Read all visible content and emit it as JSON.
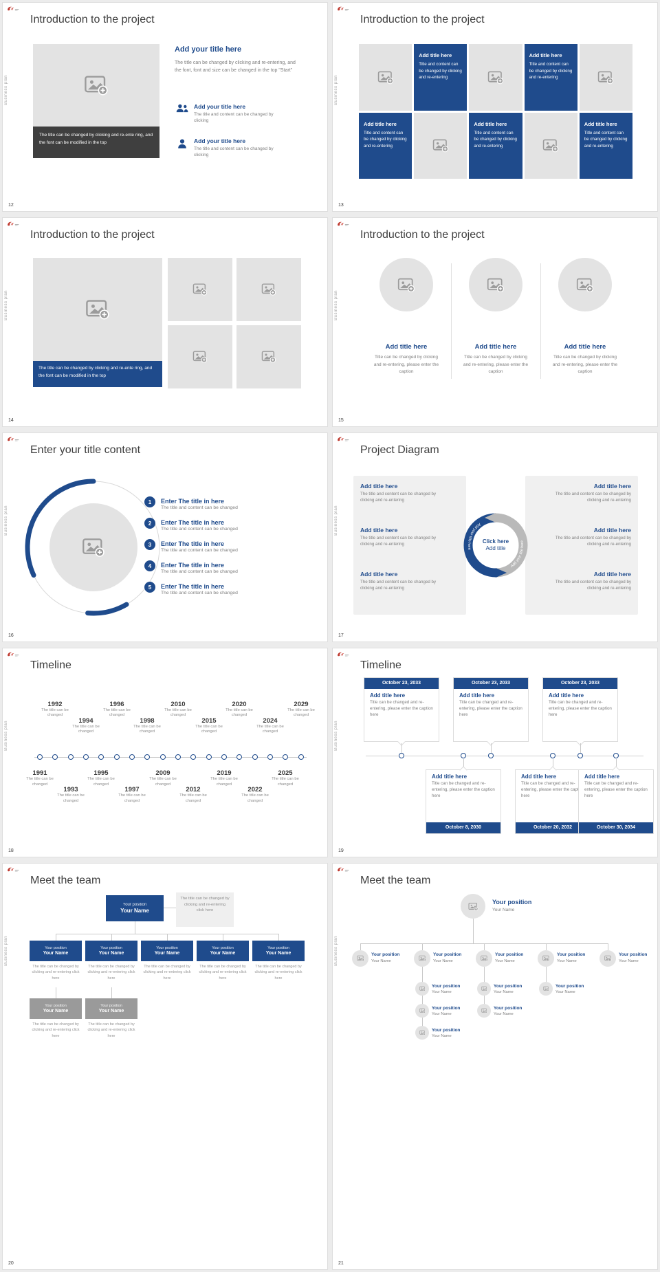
{
  "theme": {
    "accent_navy": "#1f4b8c",
    "dark_bar": "#3f3f3f",
    "placeholder_gray": "#e3e3e3",
    "page_bg": "#ececec"
  },
  "common": {
    "sidebar_label": "Business plan"
  },
  "icons": {
    "image-placeholder-icon": "picture frame with mountain, sun and plus badge",
    "people-icon": "two person silhouettes",
    "person-icon": "single person silhouette",
    "brand-logo-icon": "small red brand mark"
  },
  "s12": {
    "number": "12",
    "title": "Introduction to the project",
    "photo_caption": "The title can be changed by clicking and re-ente ring, and the font can be modified in the top",
    "lead_title": "Add your title here",
    "lead_body": "The title can be changed by clicking and re-entering, and the font, font and size can be changed in the top \"Start\"",
    "bullet1_title": "Add your title here",
    "bullet1_body": "The title and content can be changed by clicking",
    "bullet2_title": "Add your title here",
    "bullet2_body": "The title and content can be changed by clicking"
  },
  "s13": {
    "number": "13",
    "title": "Introduction to the project",
    "tile_title": "Add title here",
    "tile_body": "Title and content can be changed by clicking and re-entering"
  },
  "s14": {
    "number": "14",
    "title": "Introduction to the project",
    "photo_caption": "The title can be changed by clicking and re-ente ring, and the font can be modified in the top"
  },
  "s15": {
    "number": "15",
    "title": "Introduction to the project",
    "col_title": "Add title here",
    "col_body": "Title can be changed by clicking and re-entering, please enter the caption"
  },
  "s16": {
    "number": "16",
    "title": "Enter your title content",
    "items": [
      {
        "num": "1",
        "title": "Enter The title in here",
        "body": "The title and content can be changed"
      },
      {
        "num": "2",
        "title": "Enter The title in here",
        "body": "The title and content can be changed"
      },
      {
        "num": "3",
        "title": "Enter The title in here",
        "body": "The title and content can be changed"
      },
      {
        "num": "4",
        "title": "Enter The title in here",
        "body": "The title and content can be changed"
      },
      {
        "num": "5",
        "title": "Enter The title in here",
        "body": "The title and content can be changed"
      }
    ]
  },
  "s17": {
    "number": "17",
    "title": "Project Diagram",
    "block_title": "Add title here",
    "block_body": "The title and content can be changed by clicking and re-entering",
    "center_line1": "Click here",
    "center_line2": "Add title",
    "arc_label": "Add your title here"
  },
  "s18": {
    "number": "18",
    "title": "Timeline",
    "caption": "The title can be changed",
    "years": [
      "1991",
      "1992",
      "1993",
      "1994",
      "1995",
      "1996",
      "1997",
      "1998",
      "2009",
      "2010",
      "2012",
      "2015",
      "2019",
      "2020",
      "2022",
      "2024",
      "2025",
      "2029"
    ]
  },
  "s19": {
    "number": "19",
    "title": "Timeline",
    "item_title": "Add title here",
    "item_body": "Title can be changed and re-entering, please enter the caption here",
    "dates_top": [
      "October 23, 2033",
      "October 23, 2033",
      "October 23, 2033"
    ],
    "dates_bottom": [
      "October 8, 2030",
      "October 20, 2032",
      "October 30, 2034"
    ]
  },
  "s20": {
    "number": "20",
    "title": "Meet the team",
    "position": "Your position",
    "name": "Your Name",
    "note": "The title can be changed by clicking and re-entering click here",
    "caption": "The title can be changed by clicking and re-entering click here"
  },
  "s21": {
    "number": "21",
    "title": "Meet the team",
    "position": "Your position",
    "name": "Your Name"
  }
}
